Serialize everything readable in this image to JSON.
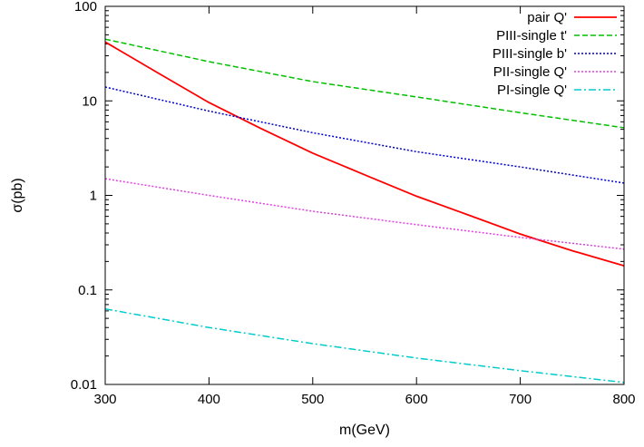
{
  "chart_data": {
    "type": "line",
    "title": "",
    "xlabel": "m(GeV)",
    "ylabel": "σ(pb)",
    "xlim": [
      300,
      800
    ],
    "ylim": [
      0.01,
      100
    ],
    "yscale": "log",
    "grid": false,
    "legend_position": "top-right",
    "x_ticks": [
      300,
      400,
      500,
      600,
      700,
      800
    ],
    "x_tick_labels": [
      "300",
      "400",
      "500",
      "600",
      "700",
      "800"
    ],
    "y_ticks": [
      0.01,
      0.1,
      1,
      10,
      100
    ],
    "y_tick_labels": [
      "0.01",
      "0.1",
      "1",
      "10",
      "100"
    ],
    "series": [
      {
        "name": "pair Q'",
        "color": "#ff0000",
        "dash": "solid",
        "x": [
          300,
          350,
          400,
          450,
          500,
          550,
          600,
          650,
          700,
          750,
          800
        ],
        "y": [
          42,
          20,
          9.6,
          5.1,
          2.8,
          1.65,
          0.98,
          0.62,
          0.39,
          0.26,
          0.18
        ]
      },
      {
        "name": "PIII-single t'",
        "color": "#00c000",
        "dash": "dashed",
        "x": [
          300,
          400,
          500,
          600,
          700,
          800
        ],
        "y": [
          45,
          26,
          16,
          11,
          7.5,
          5.2
        ]
      },
      {
        "name": "PIII-single b'",
        "color": "#0000cc",
        "dash": "dotted",
        "x": [
          300,
          400,
          500,
          600,
          700,
          800
        ],
        "y": [
          14,
          7.8,
          4.6,
          2.9,
          2.0,
          1.35
        ]
      },
      {
        "name": "PII-single Q'",
        "color": "#e040e0",
        "dash": "dotted",
        "x": [
          300,
          400,
          500,
          600,
          700,
          800
        ],
        "y": [
          1.5,
          1.0,
          0.68,
          0.49,
          0.36,
          0.27
        ]
      },
      {
        "name": "PI-single Q'",
        "color": "#00cccc",
        "dash": "dashdot",
        "x": [
          300,
          400,
          500,
          600,
          700,
          800
        ],
        "y": [
          0.063,
          0.04,
          0.027,
          0.019,
          0.014,
          0.0105
        ]
      }
    ]
  }
}
